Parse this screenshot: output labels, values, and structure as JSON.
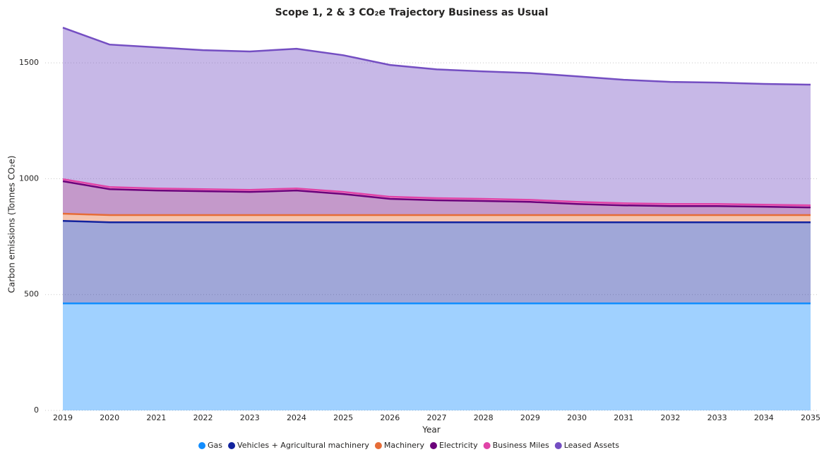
{
  "chart_data": {
    "type": "stacked_area",
    "title": "Scope 1, 2 & 3 CO₂e Trajectory Business as Usual",
    "x_label": "Year",
    "y_label": "Carbon emissions (Tonnes CO₂e)",
    "categories": [
      "2019",
      "2020",
      "2021",
      "2022",
      "2023",
      "2024",
      "2025",
      "2026",
      "2027",
      "2028",
      "2029",
      "2030",
      "2031",
      "2032",
      "2033",
      "2034",
      "2035"
    ],
    "series": [
      {
        "name": "Gas",
        "color": "#118dff",
        "values": [
          462,
          462,
          462,
          462,
          462,
          462,
          462,
          462,
          462,
          462,
          462,
          462,
          462,
          462,
          462,
          462,
          462
        ]
      },
      {
        "name": "Vehicles + Agricultural machinery",
        "color": "#12239e",
        "values": [
          356,
          350,
          350,
          350,
          350,
          350,
          350,
          350,
          350,
          350,
          350,
          350,
          350,
          350,
          350,
          350,
          350
        ]
      },
      {
        "name": "Machinery",
        "color": "#e66c37",
        "values": [
          31,
          31,
          31,
          31,
          31,
          31,
          31,
          31,
          31,
          31,
          31,
          31,
          31,
          31,
          31,
          31,
          31
        ]
      },
      {
        "name": "Electricity",
        "color": "#6b007b",
        "values": [
          140,
          112,
          106,
          103,
          100,
          106,
          91,
          70,
          64,
          61,
          57,
          48,
          42,
          39,
          39,
          36,
          33
        ]
      },
      {
        "name": "Business Miles",
        "color": "#e044a7",
        "values": [
          9,
          9,
          9,
          9,
          9,
          9,
          9,
          9,
          9,
          9,
          9,
          9,
          9,
          9,
          9,
          9,
          9
        ]
      },
      {
        "name": "Leased Assets",
        "color": "#744ec2",
        "values": [
          654,
          615,
          609,
          600,
          597,
          603,
          590,
          569,
          556,
          550,
          547,
          542,
          533,
          527,
          524,
          521,
          521
        ]
      }
    ],
    "ylim": [
      0,
      1680
    ],
    "yticks": [
      0,
      500,
      1000,
      1500
    ],
    "grid": true,
    "legend": "bottom"
  }
}
